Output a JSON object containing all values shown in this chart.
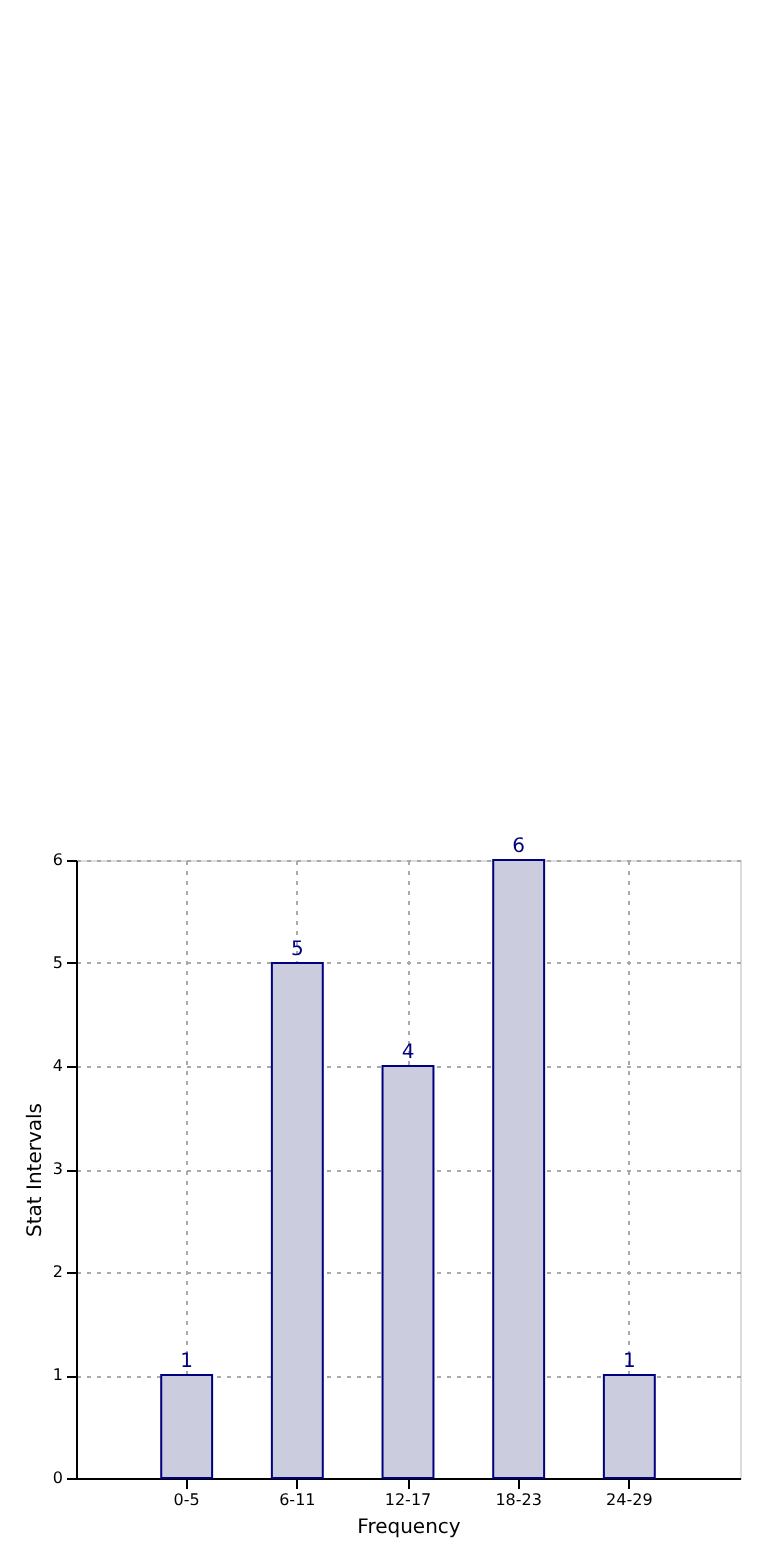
{
  "chart_data": {
    "type": "bar",
    "xlabel": "Frequency",
    "ylabel": "Stat Intervals",
    "categories": [
      "0-5",
      "6-11",
      "12-17",
      "18-23",
      "24-29"
    ],
    "series": [
      {
        "color": "#ccccdf",
        "values": [
          1,
          5,
          4,
          6,
          1
        ]
      }
    ],
    "ylim": [
      0,
      6
    ],
    "yticks": [
      0,
      1,
      2,
      3,
      4,
      5,
      6
    ],
    "grid": true,
    "data_labels": true
  }
}
